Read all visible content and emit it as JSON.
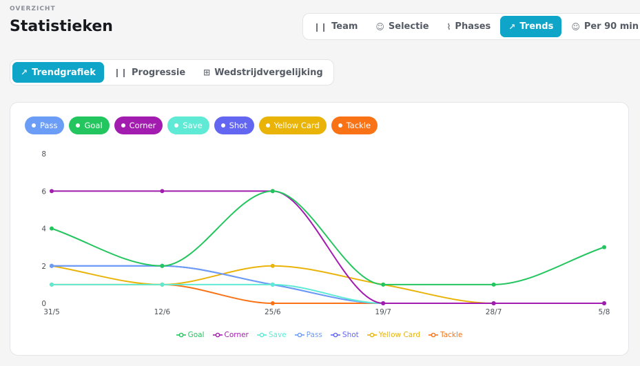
{
  "header": {
    "overline": "OVERZICHT",
    "title": "Statistieken"
  },
  "main_tabs": [
    {
      "label": "Team",
      "icon": "bar-chart-icon",
      "glyph": "❙❙"
    },
    {
      "label": "Selectie",
      "icon": "users-icon",
      "glyph": "☺"
    },
    {
      "label": "Phases",
      "icon": "activity-icon",
      "glyph": "⌇"
    },
    {
      "label": "Trends",
      "icon": "trend-up-icon",
      "glyph": "↗",
      "active": true
    },
    {
      "label": "Per 90 min",
      "icon": "users-icon",
      "glyph": "☺"
    }
  ],
  "sub_tabs": [
    {
      "label": "Trendgrafiek",
      "icon": "trend-up-icon",
      "glyph": "↗",
      "active": true
    },
    {
      "label": "Progressie",
      "icon": "bar-chart-icon",
      "glyph": "❙❙"
    },
    {
      "label": "Wedstrijdvergelijking",
      "icon": "grid-icon",
      "glyph": "⊞"
    }
  ],
  "filter_pills": [
    {
      "label": "Pass",
      "color": "#6b9cf6"
    },
    {
      "label": "Goal",
      "color": "#22c55e"
    },
    {
      "label": "Corner",
      "color": "#a21caf"
    },
    {
      "label": "Save",
      "color": "#5eead4"
    },
    {
      "label": "Shot",
      "color": "#6366f1"
    },
    {
      "label": "Yellow Card",
      "color": "#eab308"
    },
    {
      "label": "Tackle",
      "color": "#f97316"
    }
  ],
  "colors": {
    "accent": "#0ea5c9",
    "grid": "#e6e8ec",
    "axis_text": "#4b5058"
  },
  "chart_data": {
    "type": "line",
    "categories": [
      "31/5",
      "12/6",
      "25/6",
      "19/7",
      "28/7",
      "5/8"
    ],
    "ylim": [
      0,
      8
    ],
    "yticks": [
      0,
      2,
      4,
      6,
      8
    ],
    "legend_position": "bottom",
    "series": [
      {
        "name": "Goal",
        "color": "#22c55e",
        "values": [
          4,
          2,
          6,
          1,
          1,
          3
        ]
      },
      {
        "name": "Corner",
        "color": "#a21caf",
        "values": [
          6,
          6,
          6,
          0,
          0,
          0
        ]
      },
      {
        "name": "Save",
        "color": "#5eead4",
        "values": [
          1,
          1,
          1,
          0,
          0,
          0
        ]
      },
      {
        "name": "Pass",
        "color": "#6b9cf6",
        "values": [
          2,
          2,
          1,
          0,
          0,
          0
        ]
      },
      {
        "name": "Shot",
        "color": "#6366f1",
        "values": [
          2,
          2,
          1,
          0,
          0,
          0
        ]
      },
      {
        "name": "Yellow Card",
        "color": "#eab308",
        "values": [
          2,
          1,
          2,
          1,
          0,
          0
        ]
      },
      {
        "name": "Tackle",
        "color": "#f97316",
        "values": [
          1,
          1,
          0,
          0,
          0,
          0
        ]
      }
    ]
  }
}
